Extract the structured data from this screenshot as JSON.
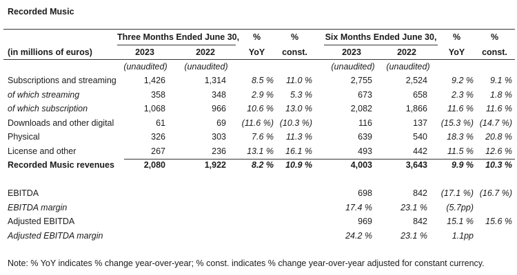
{
  "title": "Recorded Music",
  "header": {
    "units_label": "(in millions of euros)",
    "three_months": "Three Months Ended June 30,",
    "six_months": "Six Months Ended June 30,",
    "pct": "%",
    "yoy": "YoY",
    "const": "const.",
    "year_2023": "2023",
    "year_2022": "2022",
    "unaudited": "(unaudited)"
  },
  "rows": [
    {
      "label": "Subscriptions and streaming",
      "style": "normal",
      "q23": "1,426",
      "q22": "1,314",
      "qyoy": "8.5 %",
      "qconst": "11.0 %",
      "h23": "2,755",
      "h22": "2,524",
      "hyoy": "9.2 %",
      "hconst": "9.1 %"
    },
    {
      "label": "of which streaming",
      "style": "italic",
      "q23": "358",
      "q22": "348",
      "qyoy": "2.9 %",
      "qconst": "5.3 %",
      "h23": "673",
      "h22": "658",
      "hyoy": "2.3 %",
      "hconst": "1.8 %"
    },
    {
      "label": "of which subscription",
      "style": "italic",
      "q23": "1,068",
      "q22": "966",
      "qyoy": "10.6 %",
      "qconst": "13.0 %",
      "h23": "2,082",
      "h22": "1,866",
      "hyoy": "11.6 %",
      "hconst": "11.6 %"
    },
    {
      "label": "Downloads and other digital",
      "style": "normal",
      "q23": "61",
      "q22": "69",
      "qyoy": "(11.6 %)",
      "qconst": "(10.3 %)",
      "h23": "116",
      "h22": "137",
      "hyoy": "(15.3 %)",
      "hconst": "(14.7 %)"
    },
    {
      "label": "Physical",
      "style": "normal",
      "q23": "326",
      "q22": "303",
      "qyoy": "7.6 %",
      "qconst": "11.3 %",
      "h23": "639",
      "h22": "540",
      "hyoy": "18.3 %",
      "hconst": "20.8 %"
    },
    {
      "label": "License and other",
      "style": "normal",
      "q23": "267",
      "q22": "236",
      "qyoy": "13.1 %",
      "qconst": "16.1 %",
      "h23": "493",
      "h22": "442",
      "hyoy": "11.5 %",
      "hconst": "12.6 %"
    },
    {
      "label": "Recorded Music revenues",
      "style": "bold",
      "q23": "2,080",
      "q22": "1,922",
      "qyoy": "8.2 %",
      "qconst": "10.9 %",
      "h23": "4,003",
      "h22": "3,643",
      "hyoy": "9.9 %",
      "hconst": "10.3 %"
    }
  ],
  "ebitda_rows": [
    {
      "label": "EBITDA",
      "style": "normal",
      "h23": "698",
      "h22": "842",
      "hyoy": "(17.1 %)",
      "hconst": "(16.7 %)"
    },
    {
      "label": "EBITDA margin",
      "style": "italic",
      "h23": "17.4 %",
      "h22": "23.1 %",
      "hyoy": "(5.7pp)",
      "hconst": ""
    },
    {
      "label": "Adjusted EBITDA",
      "style": "normal",
      "h23": "969",
      "h22": "842",
      "hyoy": "15.1 %",
      "hconst": "15.6 %"
    },
    {
      "label": "Adjusted EBITDA margin",
      "style": "italic",
      "h23": "24.2 %",
      "h22": "23.1 %",
      "hyoy": "1.1pp",
      "hconst": ""
    }
  ],
  "note": "Note: % YoY indicates % change year-over-year; % const. indicates % change year-over-year adjusted for constant currency."
}
